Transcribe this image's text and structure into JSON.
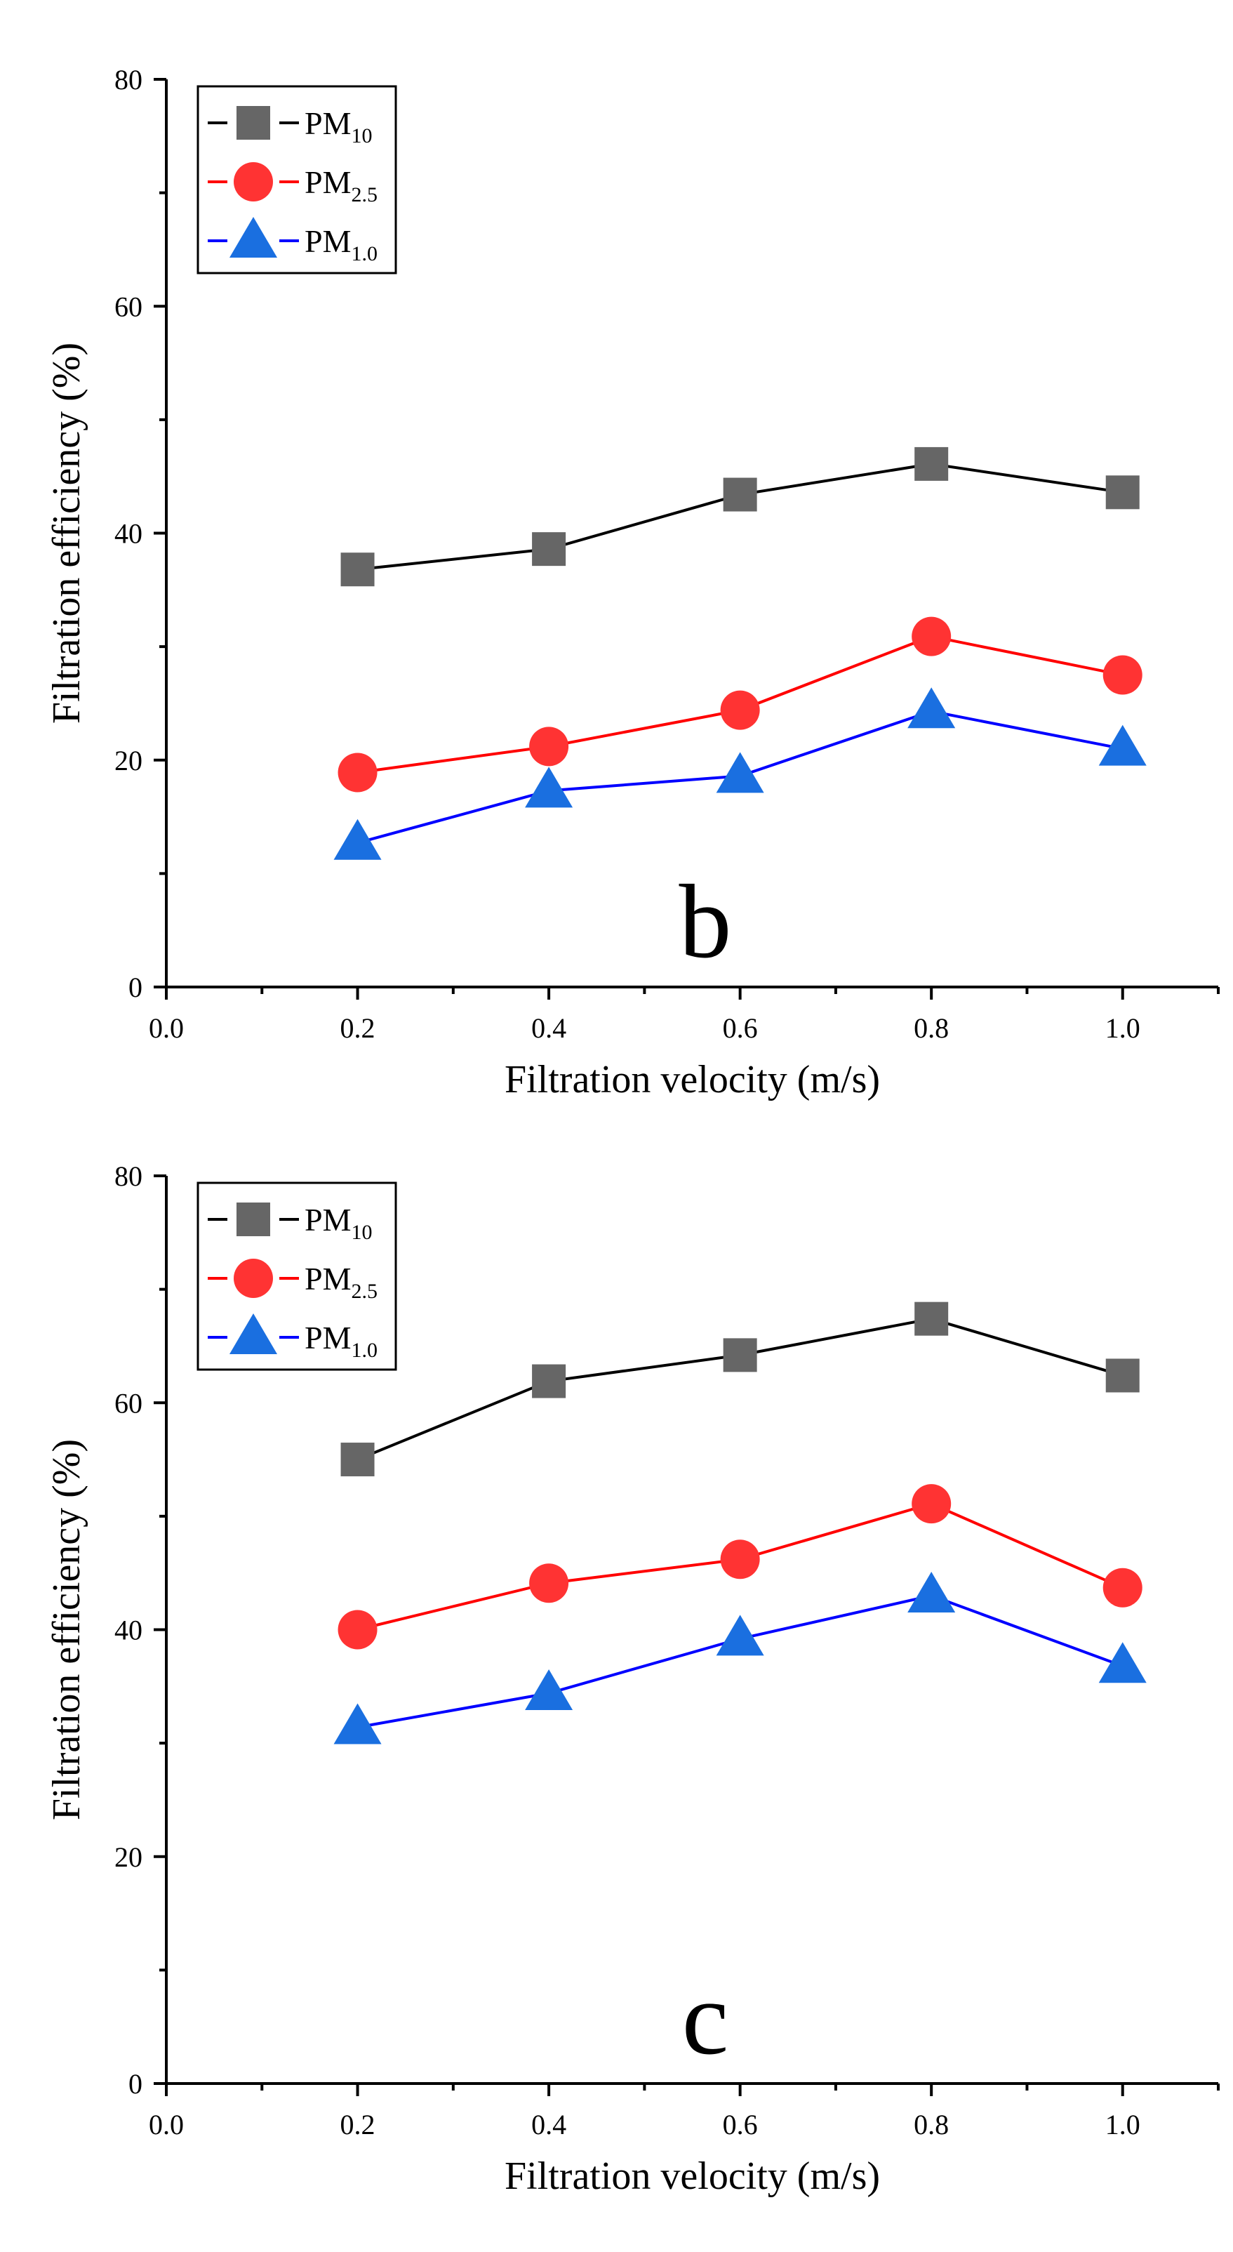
{
  "chart_data": [
    {
      "type": "line",
      "panel_label": "b",
      "xlabel": "Filtration velocity (m/s)",
      "ylabel": "Filtration efficiency (%)",
      "xlim": [
        0.0,
        1.1
      ],
      "ylim": [
        0,
        80
      ],
      "x_ticks": [
        0.0,
        0.2,
        0.4,
        0.6,
        0.8,
        1.0
      ],
      "x_tick_labels": [
        "0.0",
        "0.2",
        "0.4",
        "0.6",
        "0.8",
        "1.0"
      ],
      "y_ticks": [
        0,
        20,
        40,
        60,
        80
      ],
      "y_tick_labels": [
        "0",
        "20",
        "40",
        "60",
        "80"
      ],
      "grid": false,
      "legend_position": "top-left",
      "x": [
        0.2,
        0.4,
        0.6,
        0.8,
        1.0
      ],
      "series": [
        {
          "name": "PM10",
          "legend_main": "PM",
          "legend_sub": "10",
          "marker": "square",
          "line_color": "#000000",
          "marker_color": "#666666",
          "values": [
            36.8,
            38.6,
            43.4,
            46.1,
            43.6
          ]
        },
        {
          "name": "PM2.5",
          "legend_main": "PM",
          "legend_sub": "2.5",
          "marker": "circle",
          "line_color": "#ff0000",
          "marker_color": "#ff3333",
          "values": [
            18.9,
            21.2,
            24.4,
            30.9,
            27.5
          ]
        },
        {
          "name": "PM1.0",
          "legend_main": "PM",
          "legend_sub": "1.0",
          "marker": "triangle",
          "line_color": "#0000ff",
          "marker_color": "#1a6fe0",
          "values": [
            12.7,
            17.3,
            18.6,
            24.3,
            21.0
          ]
        }
      ]
    },
    {
      "type": "line",
      "panel_label": "c",
      "xlabel": "Filtration velocity (m/s)",
      "ylabel": "Filtration efficiency (%)",
      "xlim": [
        0.0,
        1.1
      ],
      "ylim": [
        0,
        80
      ],
      "x_ticks": [
        0.0,
        0.2,
        0.4,
        0.6,
        0.8,
        1.0
      ],
      "x_tick_labels": [
        "0.0",
        "0.2",
        "0.4",
        "0.6",
        "0.8",
        "1.0"
      ],
      "y_ticks": [
        0,
        20,
        40,
        60,
        80
      ],
      "y_tick_labels": [
        "0",
        "20",
        "40",
        "60",
        "80"
      ],
      "grid": false,
      "legend_position": "top-left",
      "x": [
        0.2,
        0.4,
        0.6,
        0.8,
        1.0
      ],
      "series": [
        {
          "name": "PM10",
          "legend_main": "PM",
          "legend_sub": "10",
          "marker": "square",
          "line_color": "#000000",
          "marker_color": "#666666",
          "values": [
            55.0,
            61.9,
            64.2,
            67.4,
            62.4
          ]
        },
        {
          "name": "PM2.5",
          "legend_main": "PM",
          "legend_sub": "2.5",
          "marker": "circle",
          "line_color": "#ff0000",
          "marker_color": "#ff3333",
          "values": [
            40.0,
            44.1,
            46.2,
            51.1,
            43.7
          ]
        },
        {
          "name": "PM1.0",
          "legend_main": "PM",
          "legend_sub": "1.0",
          "marker": "triangle",
          "line_color": "#0000ff",
          "marker_color": "#1a6fe0",
          "values": [
            31.4,
            34.4,
            39.2,
            43.0,
            36.8
          ]
        }
      ]
    }
  ]
}
